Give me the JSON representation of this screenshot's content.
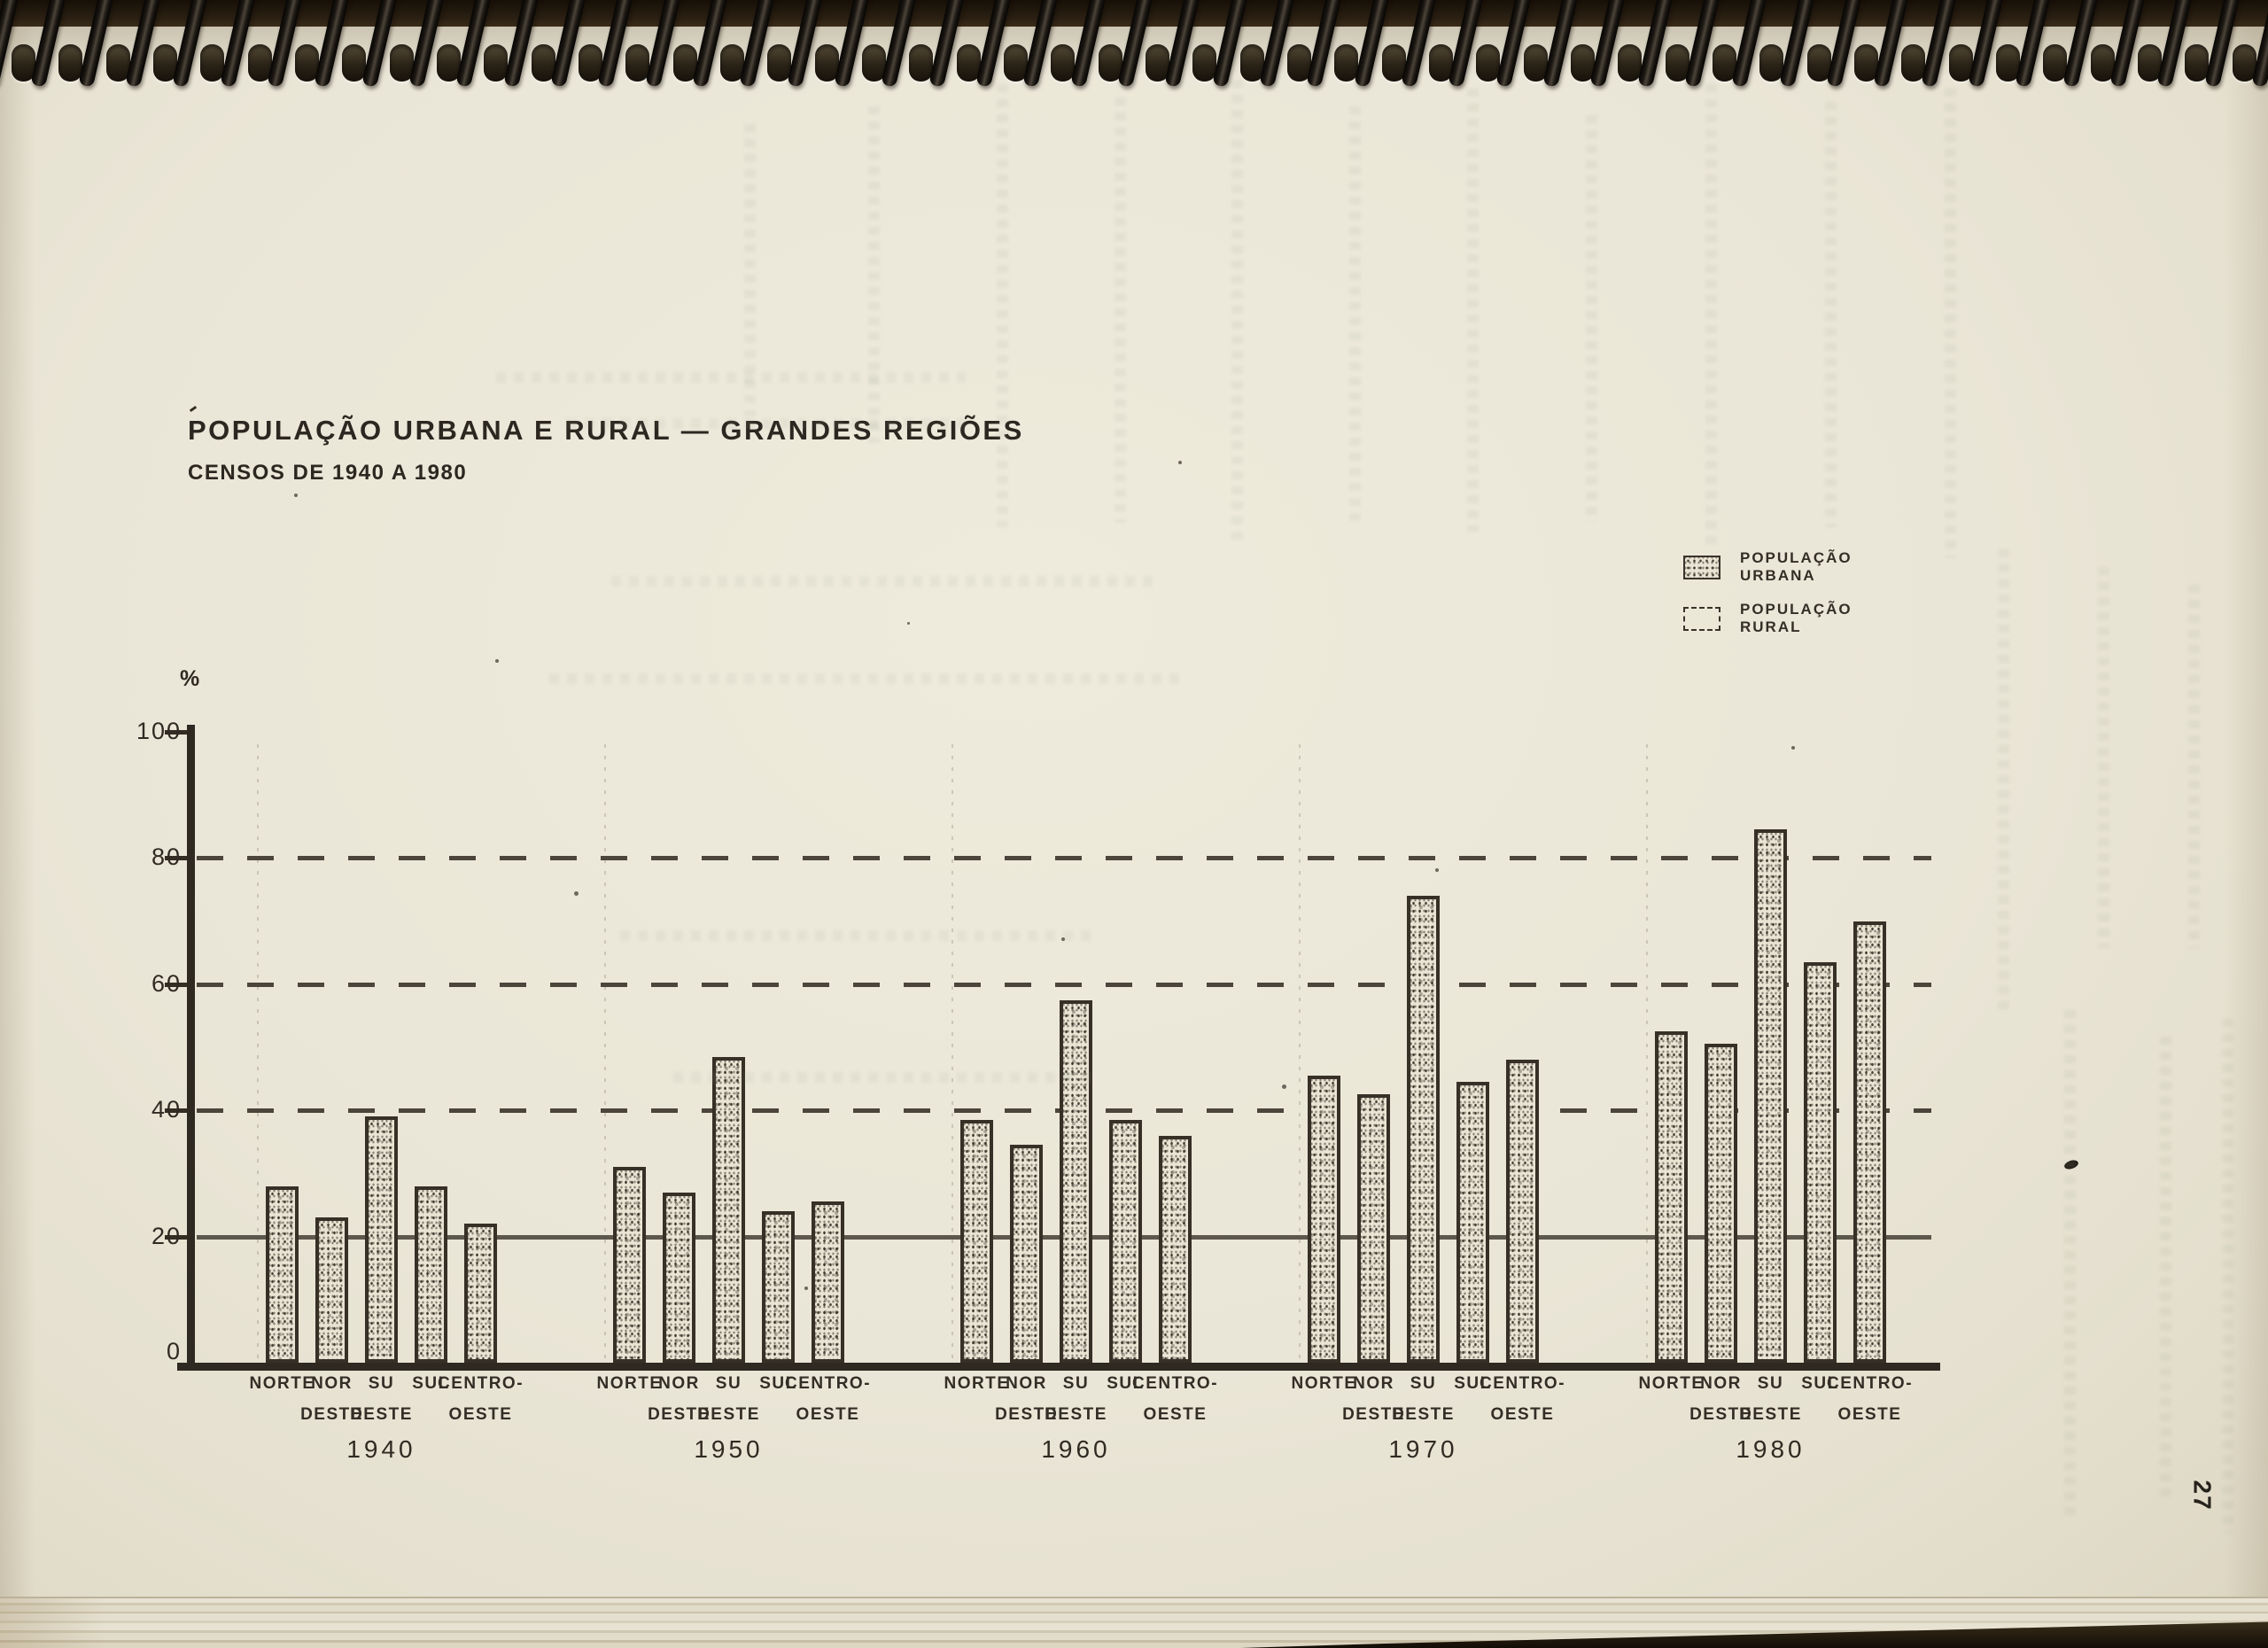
{
  "header": {
    "title": "POPULAÇÃO URBANA E RURAL — GRANDES REGIÕES",
    "subtitle": "CENSOS DE 1940 A 1980"
  },
  "legend": {
    "items": [
      {
        "label": "POPULAÇÃO URBANA",
        "swatch": "stippled-box"
      },
      {
        "label": "POPULAÇÃO RURAL",
        "swatch": "dashed-outline-box"
      }
    ]
  },
  "page_number": "27",
  "chart_data": {
    "type": "bar",
    "title": "POPULAÇÃO URBANA E RURAL — GRANDES REGIÕES",
    "subtitle": "CENSOS DE 1940 A 1980",
    "ylabel": "%",
    "ylim": [
      0,
      100
    ],
    "yticks": [
      0,
      20,
      40,
      60,
      80,
      100
    ],
    "grid": {
      "dashed_levels": [
        40,
        60,
        80
      ],
      "solid_levels": [
        20
      ]
    },
    "legend_position": "top-right",
    "note": "Only the stippled urban-population bars are drawn on the plot; the rural entry appears in the legend only.",
    "group_categories": [
      "1940",
      "1950",
      "1960",
      "1970",
      "1980"
    ],
    "regions": [
      {
        "line1": "NORTE",
        "line2": ""
      },
      {
        "line1": "NOR",
        "line2": "DESTE"
      },
      {
        "line1": "SU",
        "line2": "DESTE"
      },
      {
        "line1": "SUL",
        "line2": ""
      },
      {
        "line1": "CENTRO-",
        "line2": "OESTE"
      }
    ],
    "series": [
      {
        "name": "POPULAÇÃO URBANA",
        "year": "1940",
        "values": [
          28,
          23,
          39,
          28,
          22
        ]
      },
      {
        "name": "POPULAÇÃO URBANA",
        "year": "1950",
        "values": [
          31,
          27,
          48.5,
          24,
          25.5
        ]
      },
      {
        "name": "POPULAÇÃO URBANA",
        "year": "1960",
        "values": [
          38.5,
          34.5,
          57.5,
          38.5,
          36
        ]
      },
      {
        "name": "POPULAÇÃO URBANA",
        "year": "1970",
        "values": [
          45.5,
          42.5,
          74,
          44.5,
          48
        ]
      },
      {
        "name": "POPULAÇÃO URBANA",
        "year": "1980",
        "values": [
          52.5,
          50.5,
          84.5,
          63.5,
          70
        ]
      }
    ],
    "units": "percent of population"
  },
  "colors": {
    "paper": "#eae6d7",
    "ink": "#2f2a22",
    "binding": "#171007"
  }
}
